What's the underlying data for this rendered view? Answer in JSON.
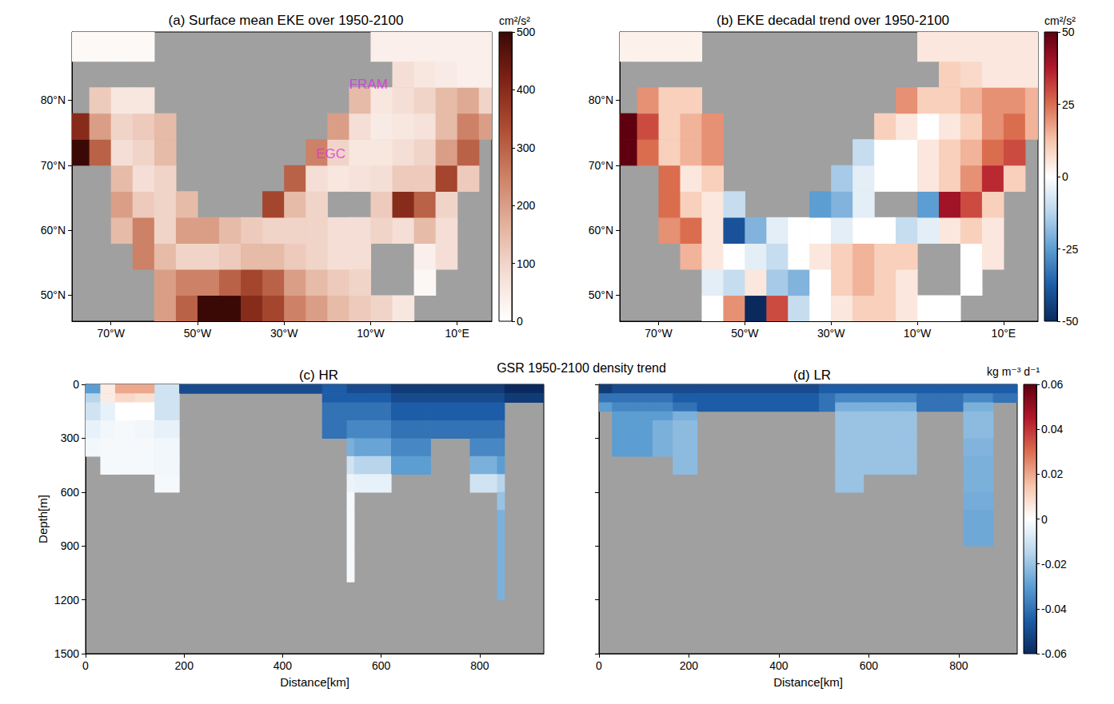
{
  "figure_title": "GSR 1950-2100 density trend",
  "chart_data": [
    {
      "type": "heatmap",
      "title": "(a) Surface mean EKE over 1950-2100",
      "xlim": [
        -79,
        18
      ],
      "ylim": [
        46,
        90.5
      ],
      "xticks": [
        {
          "value": -70,
          "label": "70°W"
        },
        {
          "value": -50,
          "label": "50°W"
        },
        {
          "value": -30,
          "label": "30°W"
        },
        {
          "value": -10,
          "label": "10°W"
        },
        {
          "value": 10,
          "label": "10°E"
        }
      ],
      "yticks": [
        {
          "value": 50,
          "label": "50°N"
        },
        {
          "value": 60,
          "label": "60°N"
        },
        {
          "value": 70,
          "label": "70°N"
        },
        {
          "value": 80,
          "label": "80°N"
        }
      ],
      "x_edges": [
        -79,
        -75,
        -70,
        -65,
        -60,
        -55,
        -50,
        -45,
        -40,
        -35,
        -30,
        -25,
        -20,
        -15,
        -10,
        -5,
        0,
        5,
        10,
        15,
        18
      ],
      "y_edges": [
        46,
        50,
        54,
        58,
        62,
        66,
        70,
        74,
        78,
        82,
        86,
        90.5
      ],
      "values": [
        [
          null,
          null,
          null,
          null,
          200,
          300,
          500,
          500,
          400,
          350,
          250,
          200,
          150,
          120,
          100,
          60,
          null,
          null,
          null,
          null
        ],
        [
          null,
          null,
          null,
          null,
          200,
          250,
          250,
          300,
          350,
          300,
          200,
          150,
          120,
          100,
          null,
          null,
          20,
          null,
          null,
          null
        ],
        [
          null,
          null,
          null,
          250,
          150,
          100,
          100,
          120,
          150,
          150,
          120,
          100,
          80,
          80,
          null,
          null,
          40,
          80,
          null,
          null
        ],
        [
          null,
          null,
          150,
          250,
          100,
          200,
          200,
          150,
          120,
          100,
          100,
          100,
          80,
          80,
          100,
          80,
          150,
          80,
          null,
          null
        ],
        [
          null,
          null,
          200,
          120,
          100,
          150,
          null,
          null,
          null,
          350,
          150,
          100,
          null,
          null,
          120,
          400,
          300,
          100,
          null,
          null
        ],
        [
          null,
          null,
          150,
          80,
          100,
          null,
          null,
          null,
          null,
          null,
          300,
          80,
          60,
          70,
          80,
          120,
          120,
          350,
          120,
          null
        ],
        [
          500,
          300,
          80,
          100,
          150,
          null,
          null,
          null,
          null,
          null,
          null,
          250,
          100,
          60,
          60,
          80,
          100,
          200,
          300,
          null
        ],
        [
          400,
          200,
          100,
          120,
          150,
          null,
          null,
          null,
          null,
          null,
          null,
          null,
          200,
          80,
          50,
          60,
          70,
          150,
          250,
          200
        ],
        [
          null,
          120,
          60,
          60,
          null,
          null,
          null,
          null,
          null,
          null,
          null,
          null,
          null,
          150,
          60,
          80,
          100,
          150,
          180,
          100
        ],
        [
          null,
          null,
          null,
          null,
          null,
          null,
          null,
          null,
          null,
          null,
          null,
          null,
          null,
          null,
          null,
          80,
          60,
          50,
          40,
          40
        ],
        [
          15,
          15,
          15,
          15,
          null,
          null,
          null,
          null,
          null,
          null,
          null,
          null,
          null,
          null,
          40,
          40,
          40,
          40,
          40,
          40
        ]
      ],
      "colorbar": {
        "range": [
          0,
          500
        ],
        "ticks": [
          0,
          100,
          200,
          300,
          400,
          500
        ],
        "label": "cm²/s²"
      },
      "annotations": [
        {
          "text": "FRAM",
          "x": -10.5,
          "y": 82.5,
          "color": "#e02be0"
        },
        {
          "text": "EGC",
          "x": -19.2,
          "y": 71.7,
          "color": "#e02be0"
        }
      ]
    },
    {
      "type": "heatmap",
      "title": "(b) EKE decadal trend over 1950-2100",
      "xlim": [
        -79,
        18
      ],
      "ylim": [
        46,
        90.5
      ],
      "xticks": [
        {
          "value": -70,
          "label": "70°W"
        },
        {
          "value": -50,
          "label": "50°W"
        },
        {
          "value": -30,
          "label": "30°W"
        },
        {
          "value": -10,
          "label": "10°W"
        },
        {
          "value": 10,
          "label": "10°E"
        }
      ],
      "yticks": [
        {
          "value": 50,
          "label": "50°N"
        },
        {
          "value": 60,
          "label": "60°N"
        },
        {
          "value": 70,
          "label": "70°N"
        },
        {
          "value": 80,
          "label": "80°N"
        }
      ],
      "x_edges": [
        -79,
        -75,
        -70,
        -65,
        -60,
        -55,
        -50,
        -45,
        -40,
        -35,
        -30,
        -25,
        -20,
        -15,
        -10,
        -5,
        0,
        5,
        10,
        15,
        18
      ],
      "y_edges": [
        46,
        50,
        54,
        58,
        62,
        66,
        70,
        74,
        78,
        82,
        86,
        90.5
      ],
      "values": [
        [
          null,
          null,
          null,
          null,
          0,
          20,
          -50,
          30,
          -10,
          0,
          5,
          10,
          10,
          5,
          0,
          0,
          null,
          null,
          null,
          null
        ],
        [
          null,
          null,
          null,
          null,
          -5,
          -10,
          5,
          -15,
          -20,
          0,
          10,
          15,
          10,
          5,
          null,
          null,
          0,
          null,
          null,
          null
        ],
        [
          null,
          null,
          null,
          15,
          5,
          0,
          -5,
          -10,
          0,
          5,
          10,
          15,
          10,
          10,
          null,
          null,
          0,
          5,
          null,
          null
        ],
        [
          null,
          null,
          20,
          25,
          5,
          -40,
          -20,
          -5,
          0,
          0,
          -5,
          0,
          0,
          -10,
          -5,
          5,
          10,
          5,
          null,
          null
        ],
        [
          null,
          null,
          25,
          10,
          5,
          -10,
          null,
          null,
          null,
          -25,
          -20,
          -5,
          null,
          null,
          -25,
          40,
          30,
          10,
          null,
          null
        ],
        [
          null,
          null,
          25,
          5,
          10,
          null,
          null,
          null,
          null,
          null,
          -15,
          -5,
          0,
          0,
          5,
          10,
          20,
          35,
          10,
          null
        ],
        [
          60,
          25,
          10,
          15,
          20,
          null,
          null,
          null,
          null,
          null,
          null,
          -10,
          0,
          0,
          5,
          10,
          15,
          25,
          30,
          null
        ],
        [
          60,
          30,
          10,
          15,
          20,
          null,
          null,
          null,
          null,
          null,
          null,
          null,
          10,
          5,
          0,
          5,
          10,
          20,
          25,
          15
        ],
        [
          null,
          20,
          10,
          10,
          null,
          null,
          null,
          null,
          null,
          null,
          null,
          null,
          null,
          20,
          10,
          10,
          15,
          20,
          20,
          15
        ],
        [
          null,
          null,
          null,
          null,
          null,
          null,
          null,
          null,
          null,
          null,
          null,
          null,
          null,
          null,
          null,
          10,
          8,
          5,
          5,
          5
        ],
        [
          3,
          3,
          3,
          3,
          null,
          null,
          null,
          null,
          null,
          null,
          null,
          null,
          null,
          null,
          5,
          5,
          5,
          5,
          5,
          5
        ]
      ],
      "colorbar": {
        "range": [
          -50,
          50
        ],
        "ticks": [
          -50,
          -25,
          0,
          25,
          50
        ],
        "label": "cm²/s²"
      }
    },
    {
      "type": "heatmap",
      "title": "(c) HR",
      "xlabel": "Distance[km]",
      "ylabel": "Depth[m]",
      "xlim": [
        0,
        930
      ],
      "ylim": [
        1500,
        0
      ],
      "xticks": [
        0,
        200,
        400,
        600,
        800
      ],
      "yticks": [
        0,
        300,
        600,
        900,
        1200,
        1500
      ],
      "x_edges": [
        0,
        30,
        60,
        100,
        140,
        190,
        480,
        530,
        545,
        560,
        620,
        700,
        780,
        835,
        850,
        930
      ],
      "y_edges": [
        0,
        50,
        100,
        200,
        300,
        400,
        500,
        600,
        700,
        800,
        900,
        1000,
        1100,
        1200
      ],
      "values": [
        [
          -0.03,
          0.005,
          0.02,
          0.02,
          -0.01,
          -0.05,
          -0.045,
          -0.05,
          -0.05,
          -0.05,
          -0.055,
          -0.055,
          -0.055,
          -0.055,
          -0.06
        ],
        [
          -0.015,
          0.005,
          0.01,
          0.008,
          -0.01,
          null,
          -0.045,
          -0.045,
          -0.045,
          -0.045,
          -0.05,
          -0.05,
          -0.05,
          -0.05,
          -0.055
        ],
        [
          -0.01,
          -0.005,
          0,
          0,
          -0.01,
          null,
          -0.04,
          -0.04,
          -0.04,
          -0.04,
          -0.045,
          -0.045,
          -0.045,
          -0.045,
          null
        ],
        [
          -0.005,
          -0.003,
          -0.002,
          -0.003,
          -0.005,
          null,
          -0.04,
          -0.035,
          -0.035,
          -0.035,
          -0.04,
          -0.04,
          -0.04,
          -0.04,
          null
        ],
        [
          -0.003,
          -0.002,
          -0.002,
          -0.002,
          -0.003,
          null,
          null,
          -0.025,
          -0.028,
          -0.028,
          -0.035,
          null,
          -0.035,
          -0.035,
          null
        ],
        [
          null,
          -0.002,
          -0.002,
          -0.002,
          -0.003,
          null,
          null,
          -0.01,
          -0.015,
          -0.015,
          -0.03,
          null,
          -0.025,
          -0.03,
          null
        ],
        [
          null,
          null,
          null,
          null,
          -0.002,
          null,
          null,
          -0.004,
          -0.005,
          -0.005,
          null,
          null,
          -0.01,
          -0.015,
          null
        ],
        [
          null,
          null,
          null,
          null,
          null,
          null,
          null,
          -0.002,
          null,
          null,
          null,
          null,
          null,
          -0.02,
          null
        ],
        [
          null,
          null,
          null,
          null,
          null,
          null,
          null,
          -0.002,
          null,
          null,
          null,
          null,
          null,
          -0.025,
          null
        ],
        [
          null,
          null,
          null,
          null,
          null,
          null,
          null,
          -0.002,
          null,
          null,
          null,
          null,
          null,
          -0.025,
          null
        ],
        [
          null,
          null,
          null,
          null,
          null,
          null,
          null,
          -0.002,
          null,
          null,
          null,
          null,
          null,
          -0.025,
          null
        ],
        [
          null,
          null,
          null,
          null,
          null,
          null,
          null,
          -0.002,
          null,
          null,
          null,
          null,
          null,
          -0.025,
          null
        ],
        [
          null,
          null,
          null,
          null,
          null,
          null,
          null,
          null,
          null,
          null,
          null,
          null,
          null,
          -0.025,
          null
        ]
      ]
    },
    {
      "type": "heatmap",
      "title": "(d) LR",
      "xlabel": "Distance[km]",
      "tick_labels": "x",
      "xlim": [
        0,
        930
      ],
      "ylim": [
        1500,
        0
      ],
      "xticks": [
        0,
        200,
        400,
        600,
        800
      ],
      "yticks": [
        0,
        300,
        600,
        900,
        1200,
        1500
      ],
      "x_edges": [
        0,
        29,
        74,
        119,
        164,
        218,
        489,
        525,
        588,
        634,
        670,
        706,
        760,
        810,
        876,
        930
      ],
      "y_edges": [
        0,
        50,
        100,
        150,
        200,
        300,
        400,
        500,
        600,
        700,
        800,
        900
      ],
      "values": [
        [
          -0.055,
          -0.05,
          -0.05,
          -0.05,
          -0.05,
          -0.05,
          -0.045,
          -0.045,
          -0.045,
          -0.045,
          -0.045,
          -0.045,
          -0.045,
          -0.045,
          -0.045
        ],
        [
          -0.04,
          -0.04,
          -0.04,
          -0.04,
          -0.045,
          -0.045,
          -0.04,
          -0.035,
          -0.035,
          -0.035,
          -0.035,
          -0.04,
          -0.04,
          -0.035,
          -0.04
        ],
        [
          -0.03,
          -0.035,
          -0.035,
          -0.035,
          -0.04,
          -0.045,
          -0.04,
          -0.025,
          -0.025,
          -0.025,
          -0.025,
          -0.04,
          -0.04,
          -0.025,
          null
        ],
        [
          null,
          -0.03,
          -0.03,
          -0.03,
          -0.025,
          null,
          null,
          -0.02,
          -0.02,
          -0.02,
          -0.02,
          null,
          null,
          -0.022,
          null
        ],
        [
          null,
          -0.03,
          -0.03,
          -0.025,
          -0.022,
          null,
          null,
          -0.02,
          -0.02,
          -0.02,
          -0.02,
          null,
          null,
          -0.022,
          null
        ],
        [
          null,
          -0.03,
          -0.03,
          -0.025,
          -0.022,
          null,
          null,
          -0.02,
          -0.02,
          -0.02,
          -0.02,
          null,
          null,
          -0.024,
          null
        ],
        [
          null,
          null,
          null,
          null,
          -0.022,
          null,
          null,
          -0.02,
          -0.02,
          -0.02,
          -0.02,
          null,
          null,
          -0.025,
          null
        ],
        [
          null,
          null,
          null,
          null,
          null,
          null,
          null,
          -0.02,
          null,
          null,
          null,
          null,
          null,
          -0.025,
          null
        ],
        [
          null,
          null,
          null,
          null,
          null,
          null,
          null,
          null,
          null,
          null,
          null,
          null,
          null,
          -0.026,
          null
        ],
        [
          null,
          null,
          null,
          null,
          null,
          null,
          null,
          null,
          null,
          null,
          null,
          null,
          null,
          -0.027,
          null
        ],
        [
          null,
          null,
          null,
          null,
          null,
          null,
          null,
          null,
          null,
          null,
          null,
          null,
          null,
          -0.027,
          null
        ]
      ],
      "colorbar": {
        "range": [
          -0.06,
          0.06
        ],
        "ticks": [
          -0.06,
          -0.04,
          -0.02,
          0,
          0.02,
          0.04,
          0.06
        ],
        "label": "kg m⁻³ d⁻¹"
      }
    }
  ]
}
